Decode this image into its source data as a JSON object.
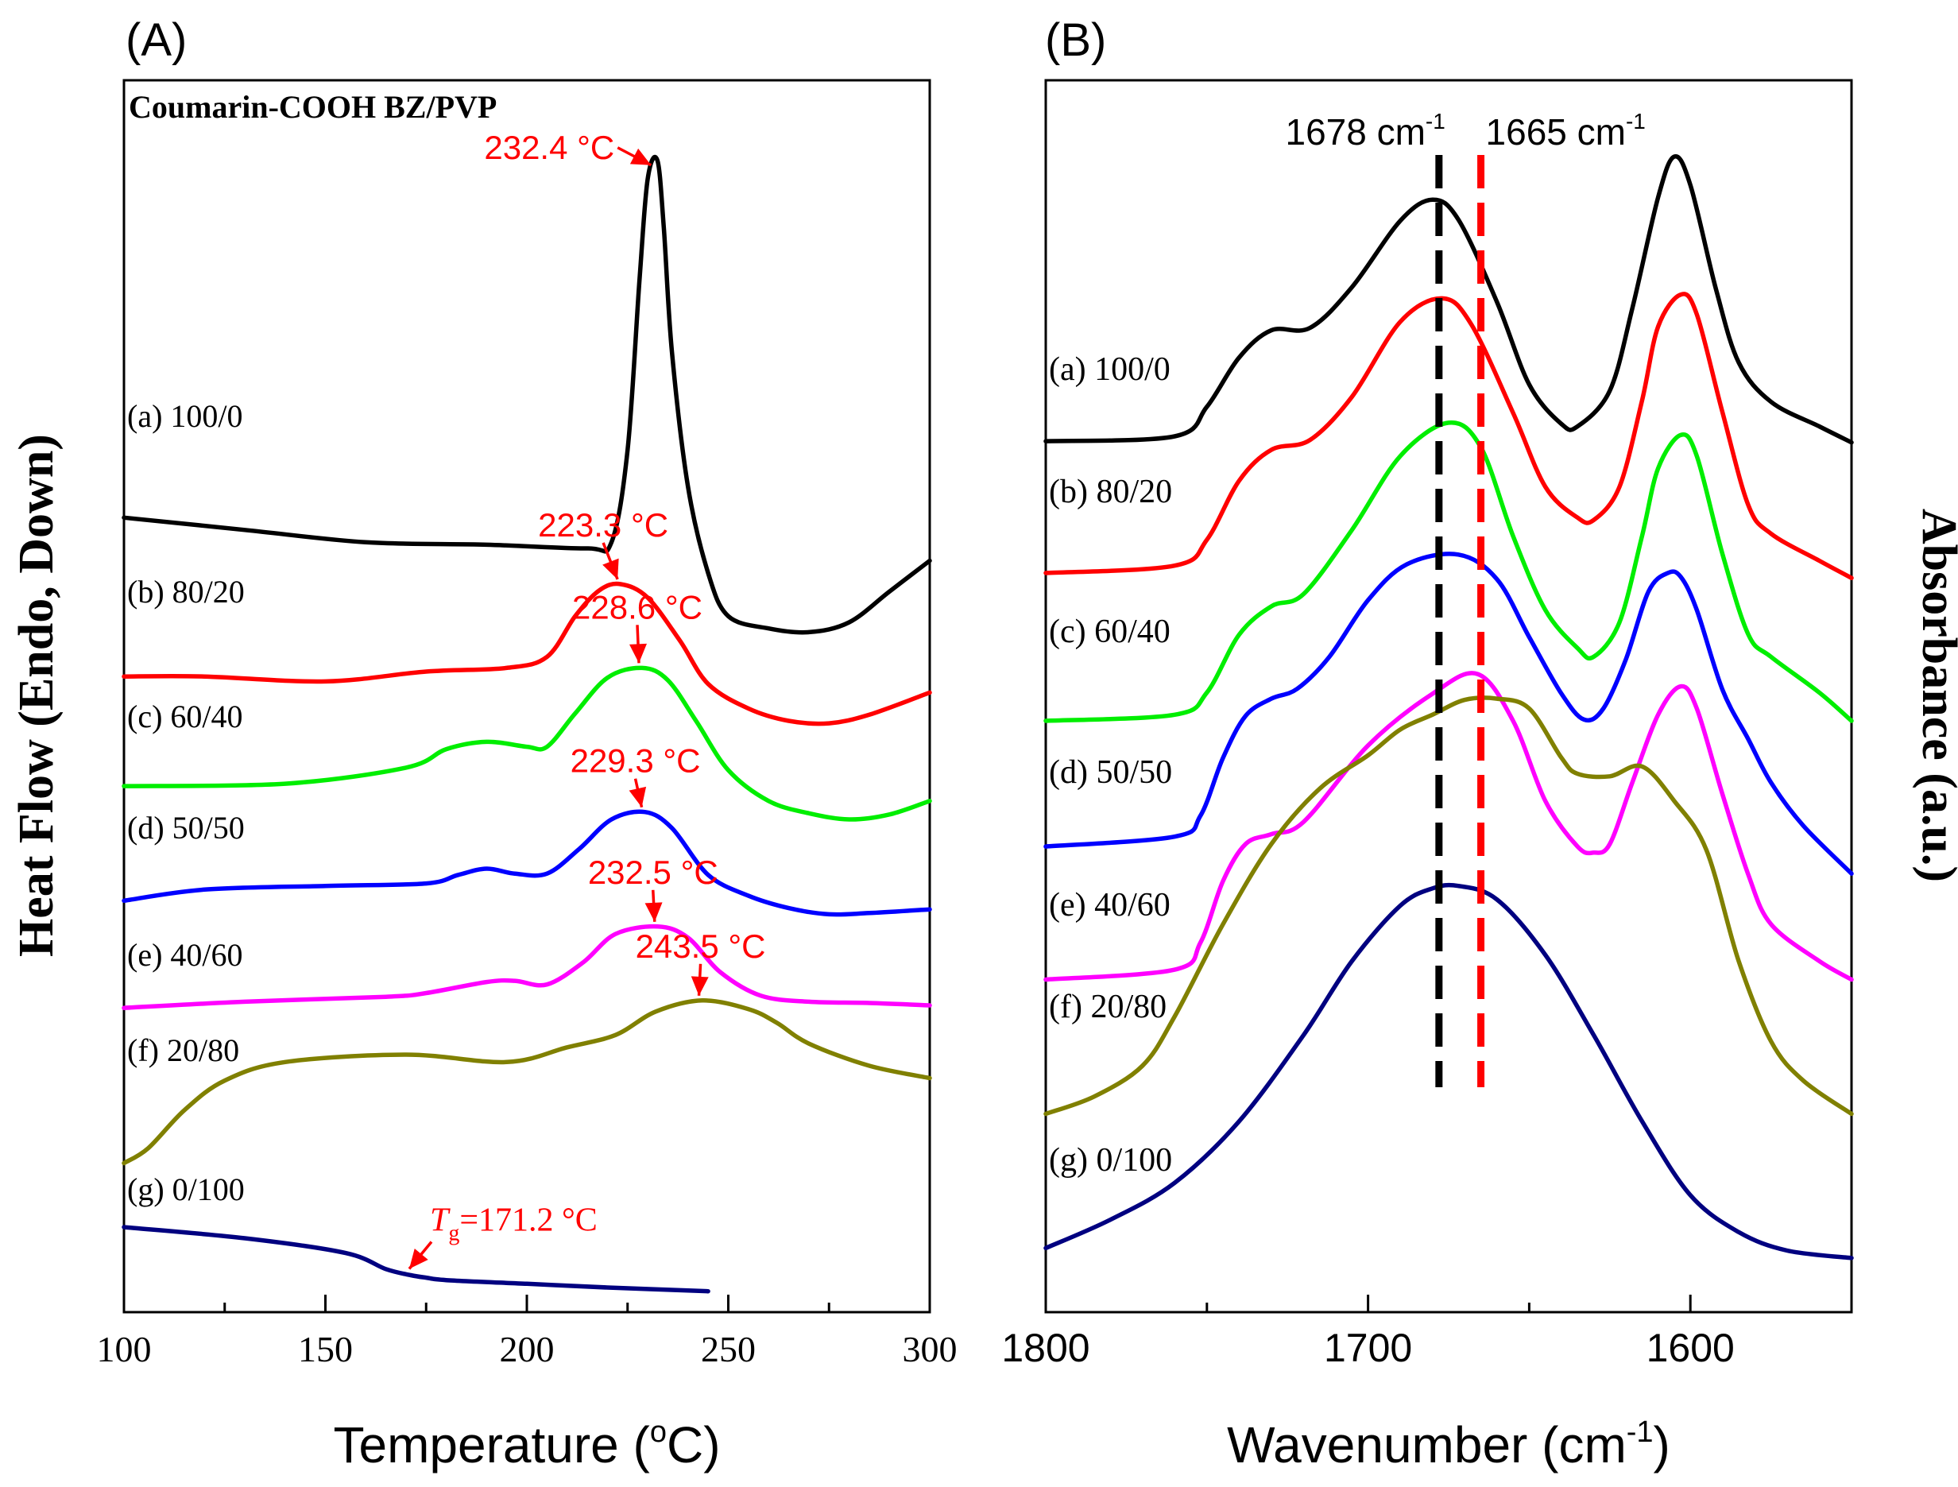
{
  "chart_data": [
    {
      "type": "line",
      "panel_label": "(A)",
      "title": "Coumarin-COOH BZ/PVP",
      "xlabel": "Temperature (",
      "xlabel_sup": "o",
      "xlabel_end": "C)",
      "ylabel": "Heat Flow (Endo, Down)",
      "xlim": [
        100,
        300
      ],
      "ylim": [
        0,
        100
      ],
      "xticks": [
        100,
        150,
        200,
        250,
        300
      ],
      "x_tick_labels": [
        "100",
        "150",
        "200",
        "250",
        "300"
      ],
      "series": [
        {
          "name": "(a) 100/0",
          "color": "#000000",
          "x": [
            100,
            130,
            160,
            190,
            215,
            221,
            225,
            228,
            230,
            232.4,
            234,
            236,
            240,
            245,
            250,
            260,
            270,
            280,
            290,
            300
          ],
          "y": [
            64.5,
            63.5,
            62.5,
            62.3,
            62.0,
            62.5,
            70,
            84,
            92,
            93.5,
            88,
            78,
            67,
            60,
            56.5,
            55.5,
            55.2,
            56,
            58.5,
            61
          ]
        },
        {
          "name": "(b) 80/20",
          "color": "#ff0000",
          "x": [
            100,
            120,
            150,
            175,
            195,
            205,
            212,
            218,
            223.3,
            230,
            238,
            245,
            255,
            265,
            275,
            285,
            300
          ],
          "y": [
            51.6,
            51.6,
            51.2,
            52.0,
            52.3,
            53.2,
            56.5,
            58.6,
            59.1,
            58.0,
            54.5,
            51.0,
            49.0,
            48.0,
            47.8,
            48.5,
            50.3
          ]
        },
        {
          "name": "(c) 60/40",
          "color": "#00ee00",
          "x": [
            100,
            140,
            170,
            180,
            190,
            200,
            205,
            212,
            220,
            228.6,
            235,
            242,
            250,
            260,
            270,
            280,
            290,
            300
          ],
          "y": [
            42.7,
            42.9,
            44.2,
            45.7,
            46.3,
            45.9,
            45.9,
            48.6,
            51.5,
            52.3,
            51.3,
            48.0,
            44.0,
            41.5,
            40.5,
            40.0,
            40.4,
            41.5
          ]
        },
        {
          "name": "(d) 50/50",
          "color": "#0000ff",
          "x": [
            100,
            120,
            150,
            175,
            183,
            190,
            197,
            205,
            213,
            221,
            229.3,
            236,
            245,
            255,
            265,
            275,
            285,
            300
          ],
          "y": [
            33.4,
            34.3,
            34.6,
            34.8,
            35.5,
            36.0,
            35.6,
            35.6,
            37.6,
            40.0,
            40.6,
            39.3,
            35.5,
            33.8,
            32.8,
            32.3,
            32.4,
            32.7
          ]
        },
        {
          "name": "(e) 40/60",
          "color": "#ff00ff",
          "x": [
            100,
            130,
            165,
            175,
            190,
            197,
            205,
            214,
            222,
            232.5,
            240,
            248,
            258,
            270,
            285,
            300
          ],
          "y": [
            24.7,
            25.2,
            25.6,
            25.9,
            26.8,
            26.9,
            26.6,
            28.4,
            30.7,
            31.3,
            30.4,
            27.6,
            25.7,
            25.2,
            25.1,
            24.9
          ]
        },
        {
          "name": "(f) 20/80",
          "color": "#808000",
          "x": [
            100,
            106,
            115,
            125,
            140,
            170,
            195,
            210,
            222,
            232,
            243.5,
            255,
            262,
            270,
            285,
            300
          ],
          "y": [
            12.1,
            13.3,
            16.4,
            18.8,
            20.3,
            20.9,
            20.3,
            21.5,
            22.5,
            24.4,
            25.3,
            24.6,
            23.5,
            21.8,
            20.0,
            19.0
          ]
        },
        {
          "name": "(g) 0/100",
          "color": "#000080",
          "x": [
            100,
            130,
            155,
            165,
            171.2,
            175,
            180,
            200,
            220,
            245
          ],
          "y": [
            6.9,
            6.0,
            4.8,
            3.5,
            3.0,
            2.8,
            2.6,
            2.3,
            2.0,
            1.7
          ]
        }
      ],
      "series_labels": [
        "(a) 100/0",
        "(b) 80/20",
        "(c) 60/40",
        "(d) 50/50",
        "(e) 40/60",
        "(f) 20/80",
        "(g) 0/100"
      ],
      "annotations": [
        {
          "label": "232.4 °C",
          "x": 232.4,
          "y": 93.5,
          "color": "#ff0000"
        },
        {
          "label": "223.3 °C",
          "x": 223.3,
          "y": 59.1,
          "color": "#ff0000"
        },
        {
          "label": "228.6 °C",
          "x": 228.6,
          "y": 52.3,
          "color": "#ff0000"
        },
        {
          "label": "229.3 °C",
          "x": 229.3,
          "y": 40.6,
          "color": "#ff0000"
        },
        {
          "label": "232.5 °C",
          "x": 232.5,
          "y": 31.3,
          "color": "#ff0000"
        },
        {
          "label": "243.5 °C",
          "x": 243.5,
          "y": 25.3,
          "color": "#ff0000"
        }
      ],
      "tg_annotation": {
        "symbol": "T",
        "subscript": "g",
        "text": "=171.2 °C",
        "x": 171.2,
        "y": 3.0,
        "color": "#ff0000"
      }
    },
    {
      "type": "line",
      "panel_label": "(B)",
      "xlabel": "Wavenumber (cm",
      "xlabel_sup": "-1",
      "xlabel_end": ")",
      "ylabel": "Absorbance (a.u.)",
      "xlim": [
        1800,
        1550
      ],
      "ylim": [
        0,
        100
      ],
      "xticks": [
        1800,
        1700,
        1600
      ],
      "x_tick_labels": [
        "1800",
        "1700",
        "1600"
      ],
      "series": [
        {
          "name": "(a) 100/0",
          "color": "#000000",
          "x": [
            1800,
            1760,
            1750,
            1740,
            1730,
            1718,
            1705,
            1690,
            1680,
            1672,
            1660,
            1650,
            1640,
            1635,
            1625,
            1618,
            1610,
            1605,
            1600,
            1592,
            1585,
            1575,
            1560,
            1550
          ],
          "y": [
            70.7,
            71.1,
            73.5,
            77.5,
            79.7,
            79.9,
            83.2,
            88.6,
            90.3,
            88.7,
            82.0,
            75.3,
            72.1,
            71.9,
            74.8,
            81.5,
            90.5,
            93.8,
            91.5,
            83.0,
            77.1,
            73.9,
            71.9,
            70.6
          ]
        },
        {
          "name": "(b) 80/20",
          "color": "#ff0000",
          "x": [
            1800,
            1760,
            1750,
            1740,
            1730,
            1718,
            1705,
            1690,
            1677,
            1668,
            1655,
            1645,
            1635,
            1630,
            1622,
            1615,
            1610,
            1603,
            1598,
            1590,
            1582,
            1575,
            1560,
            1550
          ],
          "y": [
            60.0,
            60.6,
            62.7,
            67.5,
            70.0,
            70.8,
            74.3,
            80.4,
            82.3,
            80.2,
            73.0,
            67.0,
            64.5,
            64.3,
            67.0,
            74.0,
            80.0,
            82.6,
            81.0,
            73.0,
            65.5,
            63.2,
            61.0,
            59.6
          ]
        },
        {
          "name": "(c) 60/40",
          "color": "#00ee00",
          "x": [
            1800,
            1760,
            1750,
            1740,
            1730,
            1720,
            1705,
            1690,
            1675,
            1665,
            1655,
            1645,
            1635,
            1630,
            1622,
            1615,
            1610,
            1603,
            1598,
            1590,
            1582,
            1575,
            1560,
            1550
          ],
          "y": [
            48.0,
            48.5,
            50.3,
            55.0,
            57.3,
            58.3,
            63.5,
            69.5,
            72.2,
            70.2,
            63.0,
            57.0,
            53.9,
            53.2,
            56.0,
            63.0,
            68.5,
            71.2,
            69.5,
            61.5,
            55.0,
            53.2,
            50.3,
            48.0
          ]
        },
        {
          "name": "(d) 50/50",
          "color": "#0000ff",
          "x": [
            1800,
            1760,
            1752,
            1745,
            1738,
            1730,
            1722,
            1712,
            1700,
            1688,
            1672,
            1660,
            1650,
            1640,
            1633,
            1627,
            1620,
            1613,
            1607,
            1603,
            1598,
            1590,
            1582,
            1575,
            1565,
            1550
          ],
          "y": [
            37.8,
            38.6,
            40.3,
            45.0,
            48.4,
            49.8,
            50.6,
            53.2,
            57.8,
            60.7,
            61.5,
            59.5,
            54.8,
            50.2,
            48.1,
            49.0,
            53.0,
            58.5,
            60.0,
            59.7,
            57.0,
            50.5,
            46.5,
            43.0,
            39.5,
            35.6
          ]
        },
        {
          "name": "(e) 40/60",
          "color": "#ff00ff",
          "x": [
            1800,
            1760,
            1752,
            1745,
            1738,
            1730,
            1720,
            1700,
            1680,
            1666,
            1655,
            1645,
            1635,
            1630,
            1625,
            1618,
            1610,
            1603,
            1598,
            1590,
            1582,
            1575,
            1560,
            1550
          ],
          "y": [
            27.0,
            27.8,
            30.0,
            35.0,
            38.0,
            38.8,
            39.8,
            46.0,
            50.2,
            51.8,
            48.0,
            41.5,
            37.8,
            37.3,
            38.0,
            43.0,
            48.5,
            50.8,
            49.0,
            42.0,
            35.5,
            31.5,
            28.5,
            27.0
          ]
        },
        {
          "name": "(f) 20/80",
          "color": "#808000",
          "x": [
            1800,
            1785,
            1770,
            1760,
            1745,
            1730,
            1715,
            1700,
            1690,
            1680,
            1670,
            1660,
            1650,
            1640,
            1635,
            1625,
            1615,
            1605,
            1595,
            1585,
            1575,
            1565,
            1550
          ],
          "y": [
            16.1,
            17.5,
            20.0,
            24.0,
            31.5,
            38.0,
            42.5,
            45.2,
            47.3,
            48.5,
            49.7,
            49.8,
            49.0,
            45.0,
            43.7,
            43.5,
            44.3,
            41.5,
            37.5,
            28.5,
            22.0,
            18.8,
            16.1
          ]
        },
        {
          "name": "(g) 0/100",
          "color": "#000080",
          "x": [
            1800,
            1780,
            1760,
            1740,
            1720,
            1705,
            1690,
            1680,
            1672,
            1660,
            1645,
            1630,
            1615,
            1600,
            1585,
            1570,
            1550
          ],
          "y": [
            5.2,
            7.5,
            10.5,
            15.5,
            22.5,
            28.5,
            33.0,
            34.4,
            34.6,
            33.5,
            29.0,
            22.5,
            15.5,
            9.5,
            6.5,
            5.0,
            4.4
          ]
        }
      ],
      "series_labels": [
        "(a) 100/0",
        "(b) 80/20",
        "(c) 60/40",
        "(d) 50/50",
        "(e) 40/60",
        "(f) 20/80",
        "(g) 0/100"
      ],
      "reference_lines": [
        {
          "label": "1678 cm",
          "sup": "-1",
          "x": 1678,
          "color": "#000000"
        },
        {
          "label": "1665 cm",
          "sup": "-1",
          "x": 1665,
          "color": "#ff0000"
        }
      ]
    }
  ]
}
